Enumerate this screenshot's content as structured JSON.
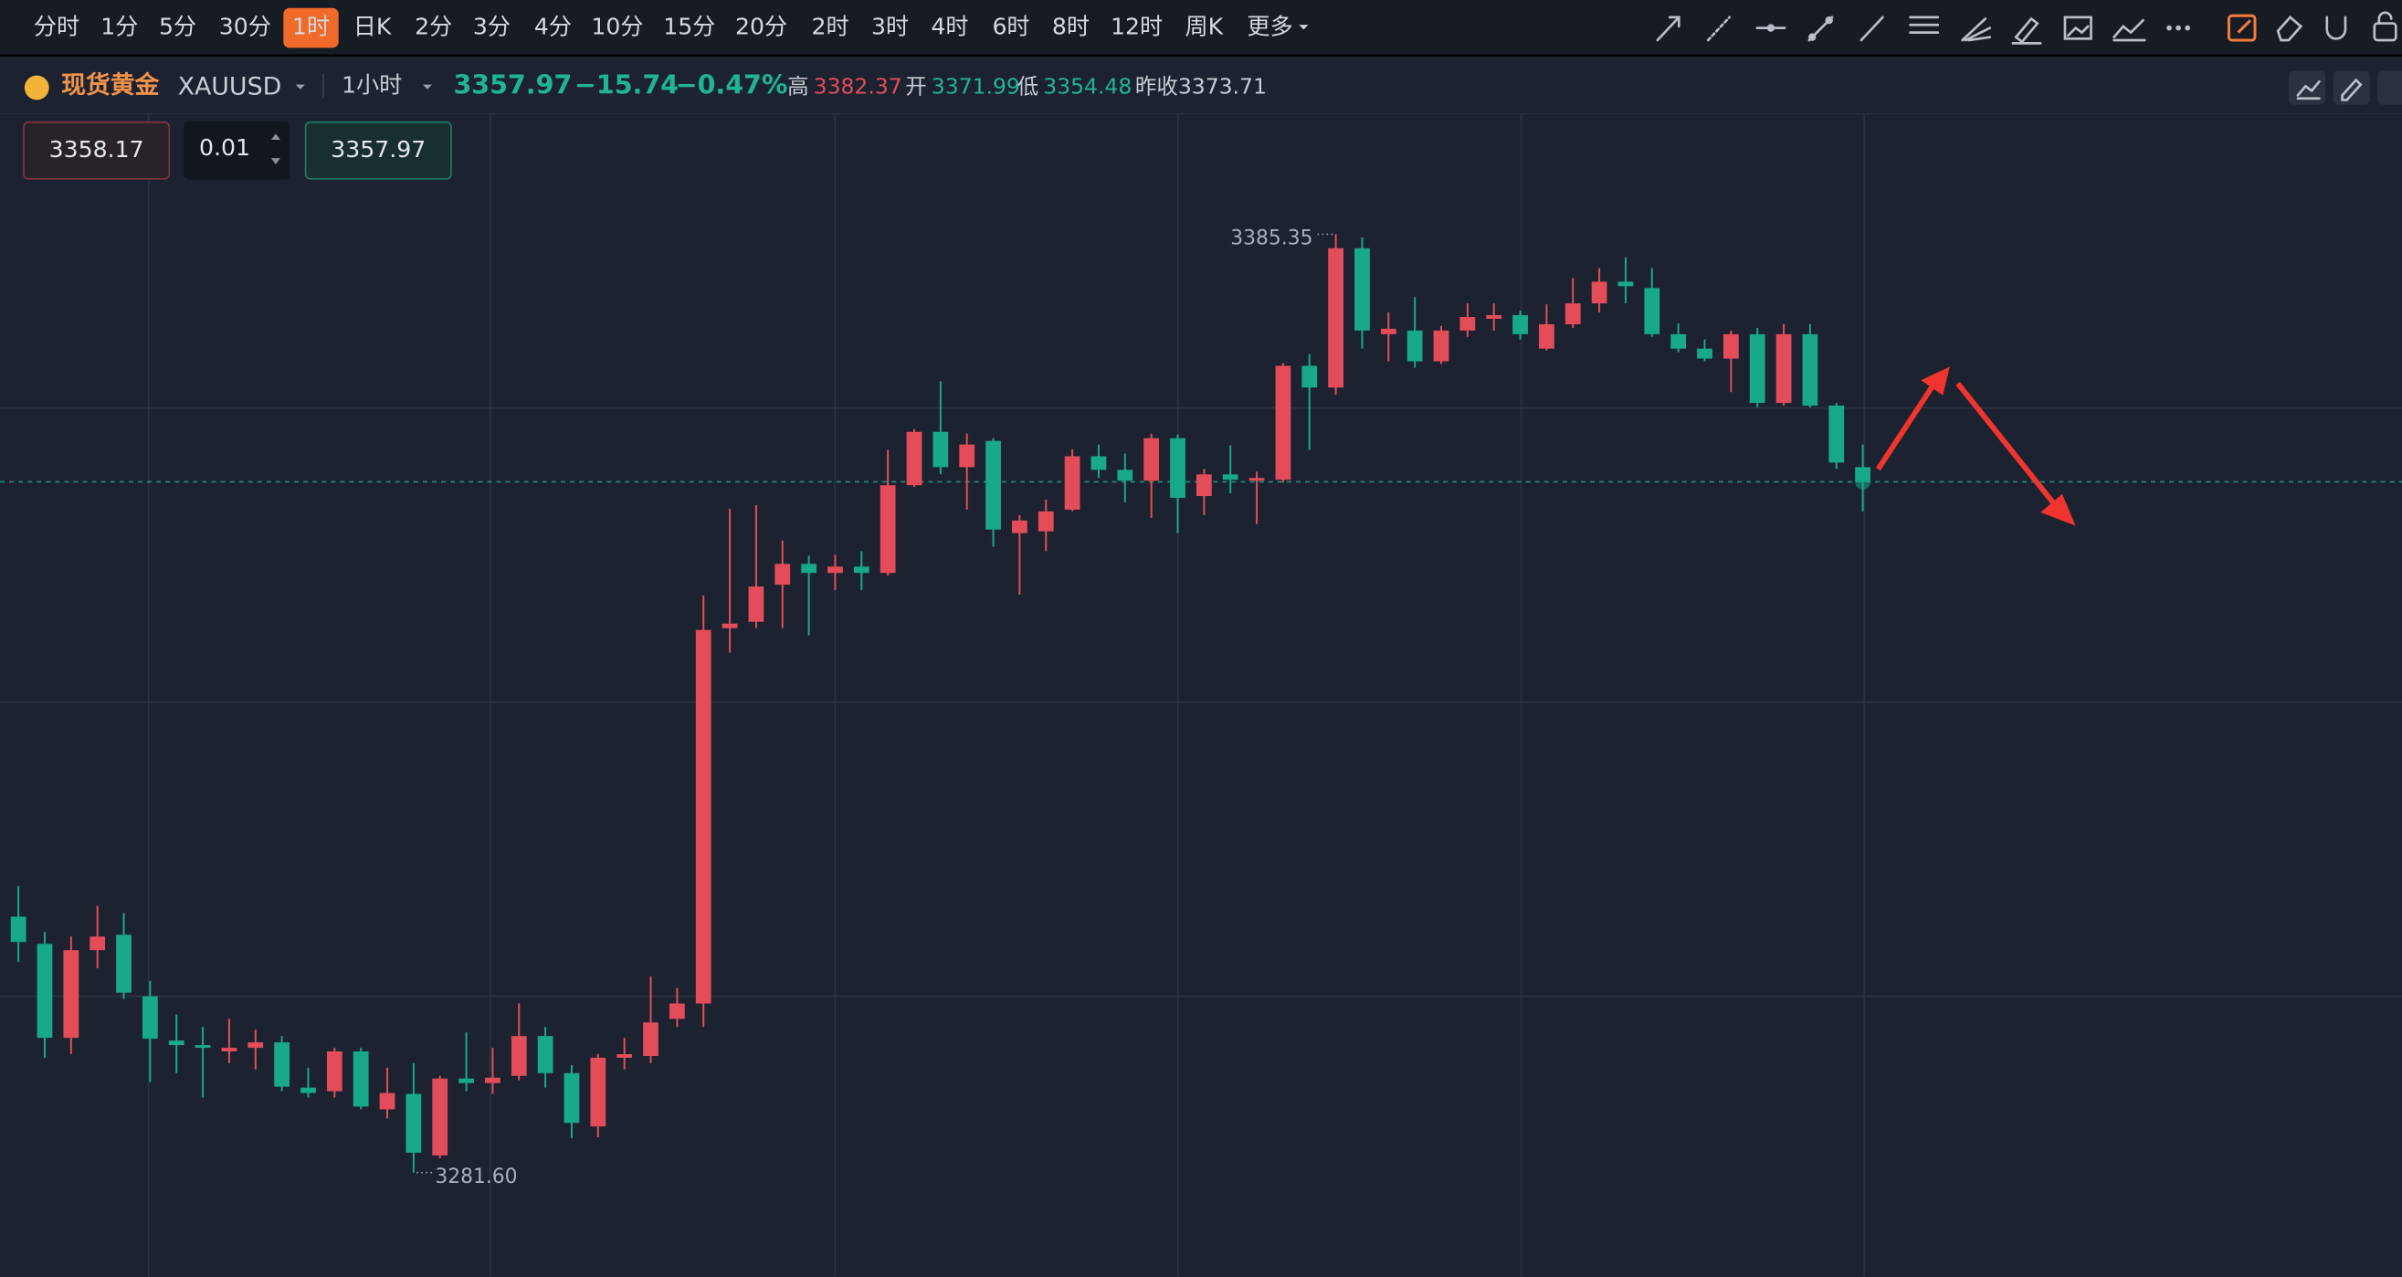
{
  "toolbar": {
    "timeframes": [
      "分时",
      "1分",
      "5分",
      "30分",
      "1时",
      "日K",
      "2分",
      "3分",
      "4分",
      "10分",
      "15分",
      "20分",
      "2时",
      "3时",
      "4时",
      "6时",
      "8时",
      "12时",
      "周K"
    ],
    "selected": "1时",
    "more": "更多"
  },
  "header": {
    "name": "现货黄金",
    "symbol": "XAUUSD",
    "interval": "1小时",
    "price": "3357.97",
    "change": "−15.74",
    "change_pct": "−0.47%",
    "stats": [
      {
        "label": "高",
        "value": "3382.37"
      },
      {
        "label": "开",
        "value": "3371.99"
      },
      {
        "label": "低",
        "value": "3354.48"
      },
      {
        "label": "昨收",
        "value": "3373.71"
      }
    ]
  },
  "order": {
    "sell": "3358.17",
    "quantity": "0.01",
    "buy": "3357.97"
  },
  "chart_data": {
    "type": "candlestick",
    "up_color": "#e24d59",
    "down_color": "#18a88a",
    "ylim": [
      3270.1,
      3398.5
    ],
    "open": [
      3309.9,
      3306.9,
      3296.5,
      3306.2,
      3307.9,
      3301.1,
      3296.2,
      3295.7,
      3295.0,
      3295.4,
      3296.0,
      3291.0,
      3290.6,
      3295.0,
      3288.6,
      3290.3,
      3283.5,
      3292.0,
      3291.5,
      3292.3,
      3296.7,
      3292.6,
      3286.7,
      3294.3,
      3294.5,
      3298.6,
      3300.3,
      3341.8,
      3342.5,
      3346.6,
      3348.9,
      3347.9,
      3348.6,
      3347.9,
      3357.6,
      3363.5,
      3359.6,
      3362.5,
      3352.3,
      3352.5,
      3354.9,
      3360.8,
      3359.3,
      3358.1,
      3362.8,
      3356.4,
      3358.8,
      3358.1,
      3358.2,
      3370.8,
      3368.4,
      3383.8,
      3374.3,
      3374.7,
      3371.3,
      3374.7,
      3376.0,
      3376.4,
      3372.7,
      3375.4,
      3377.7,
      3380.1,
      3379.4,
      3374.3,
      3372.7,
      3371.6,
      3374.3,
      3366.7,
      3374.3,
      3366.4,
      3359.6
    ],
    "high": [
      3313.3,
      3308.2,
      3307.7,
      3311.1,
      3310.3,
      3302.8,
      3299.1,
      3297.7,
      3298.6,
      3297.4,
      3296.7,
      3293.2,
      3295.4,
      3295.4,
      3293.2,
      3293.7,
      3292.3,
      3297.1,
      3295.4,
      3300.3,
      3297.7,
      3293.5,
      3294.7,
      3296.5,
      3303.3,
      3302.0,
      3345.4,
      3355.0,
      3355.4,
      3351.5,
      3349.8,
      3349.9,
      3350.3,
      3361.5,
      3363.8,
      3369.1,
      3363.3,
      3362.8,
      3354.3,
      3356.0,
      3361.6,
      3362.1,
      3361.1,
      3363.3,
      3363.2,
      3359.4,
      3362.0,
      3359.1,
      3371.1,
      3372.1,
      3385.35,
      3385.0,
      3376.7,
      3378.4,
      3375.2,
      3377.7,
      3377.7,
      3376.9,
      3377.6,
      3380.5,
      3381.6,
      3382.8,
      3381.6,
      3375.5,
      3373.7,
      3374.7,
      3375.0,
      3375.4,
      3375.4,
      3366.7,
      3362.1
    ],
    "low": [
      3304.9,
      3294.3,
      3294.7,
      3304.2,
      3300.8,
      3291.6,
      3292.6,
      3289.9,
      3293.7,
      3293.0,
      3290.6,
      3289.9,
      3289.9,
      3288.6,
      3287.6,
      3281.6,
      3283.2,
      3290.6,
      3290.3,
      3291.8,
      3291.0,
      3285.4,
      3285.5,
      3293.0,
      3293.7,
      3297.7,
      3297.7,
      3339.1,
      3341.8,
      3341.8,
      3341.0,
      3346.0,
      3346.0,
      3347.6,
      3357.4,
      3358.8,
      3354.9,
      3350.8,
      3345.5,
      3350.3,
      3354.7,
      3358.4,
      3355.7,
      3354.0,
      3352.3,
      3354.3,
      3356.7,
      3353.3,
      3357.9,
      3361.5,
      3367.6,
      3372.7,
      3371.3,
      3370.6,
      3371.0,
      3374.0,
      3374.7,
      3373.7,
      3372.5,
      3375.0,
      3376.7,
      3377.7,
      3374.0,
      3372.3,
      3371.3,
      3367.9,
      3366.2,
      3366.4,
      3366.2,
      3359.4,
      3354.7
    ],
    "close": [
      3307.1,
      3296.5,
      3306.2,
      3307.7,
      3301.5,
      3296.4,
      3295.7,
      3295.4,
      3295.4,
      3296.0,
      3291.1,
      3290.4,
      3295.0,
      3288.9,
      3290.4,
      3283.8,
      3292.0,
      3291.5,
      3292.1,
      3296.7,
      3292.6,
      3287.1,
      3294.3,
      3294.7,
      3298.2,
      3300.3,
      3341.6,
      3342.3,
      3346.4,
      3348.9,
      3347.9,
      3348.6,
      3347.9,
      3357.6,
      3363.5,
      3359.6,
      3362.1,
      3352.7,
      3353.7,
      3354.7,
      3360.8,
      3359.3,
      3358.1,
      3362.8,
      3356.2,
      3358.8,
      3358.2,
      3358.4,
      3370.8,
      3368.4,
      3383.8,
      3374.7,
      3374.9,
      3371.3,
      3374.7,
      3376.2,
      3376.4,
      3374.3,
      3375.4,
      3377.7,
      3380.1,
      3379.6,
      3374.3,
      3372.7,
      3371.6,
      3374.3,
      3366.7,
      3374.3,
      3366.4,
      3360.1,
      3357.97
    ],
    "annotations": [
      "3385.35",
      "3281.60"
    ]
  }
}
